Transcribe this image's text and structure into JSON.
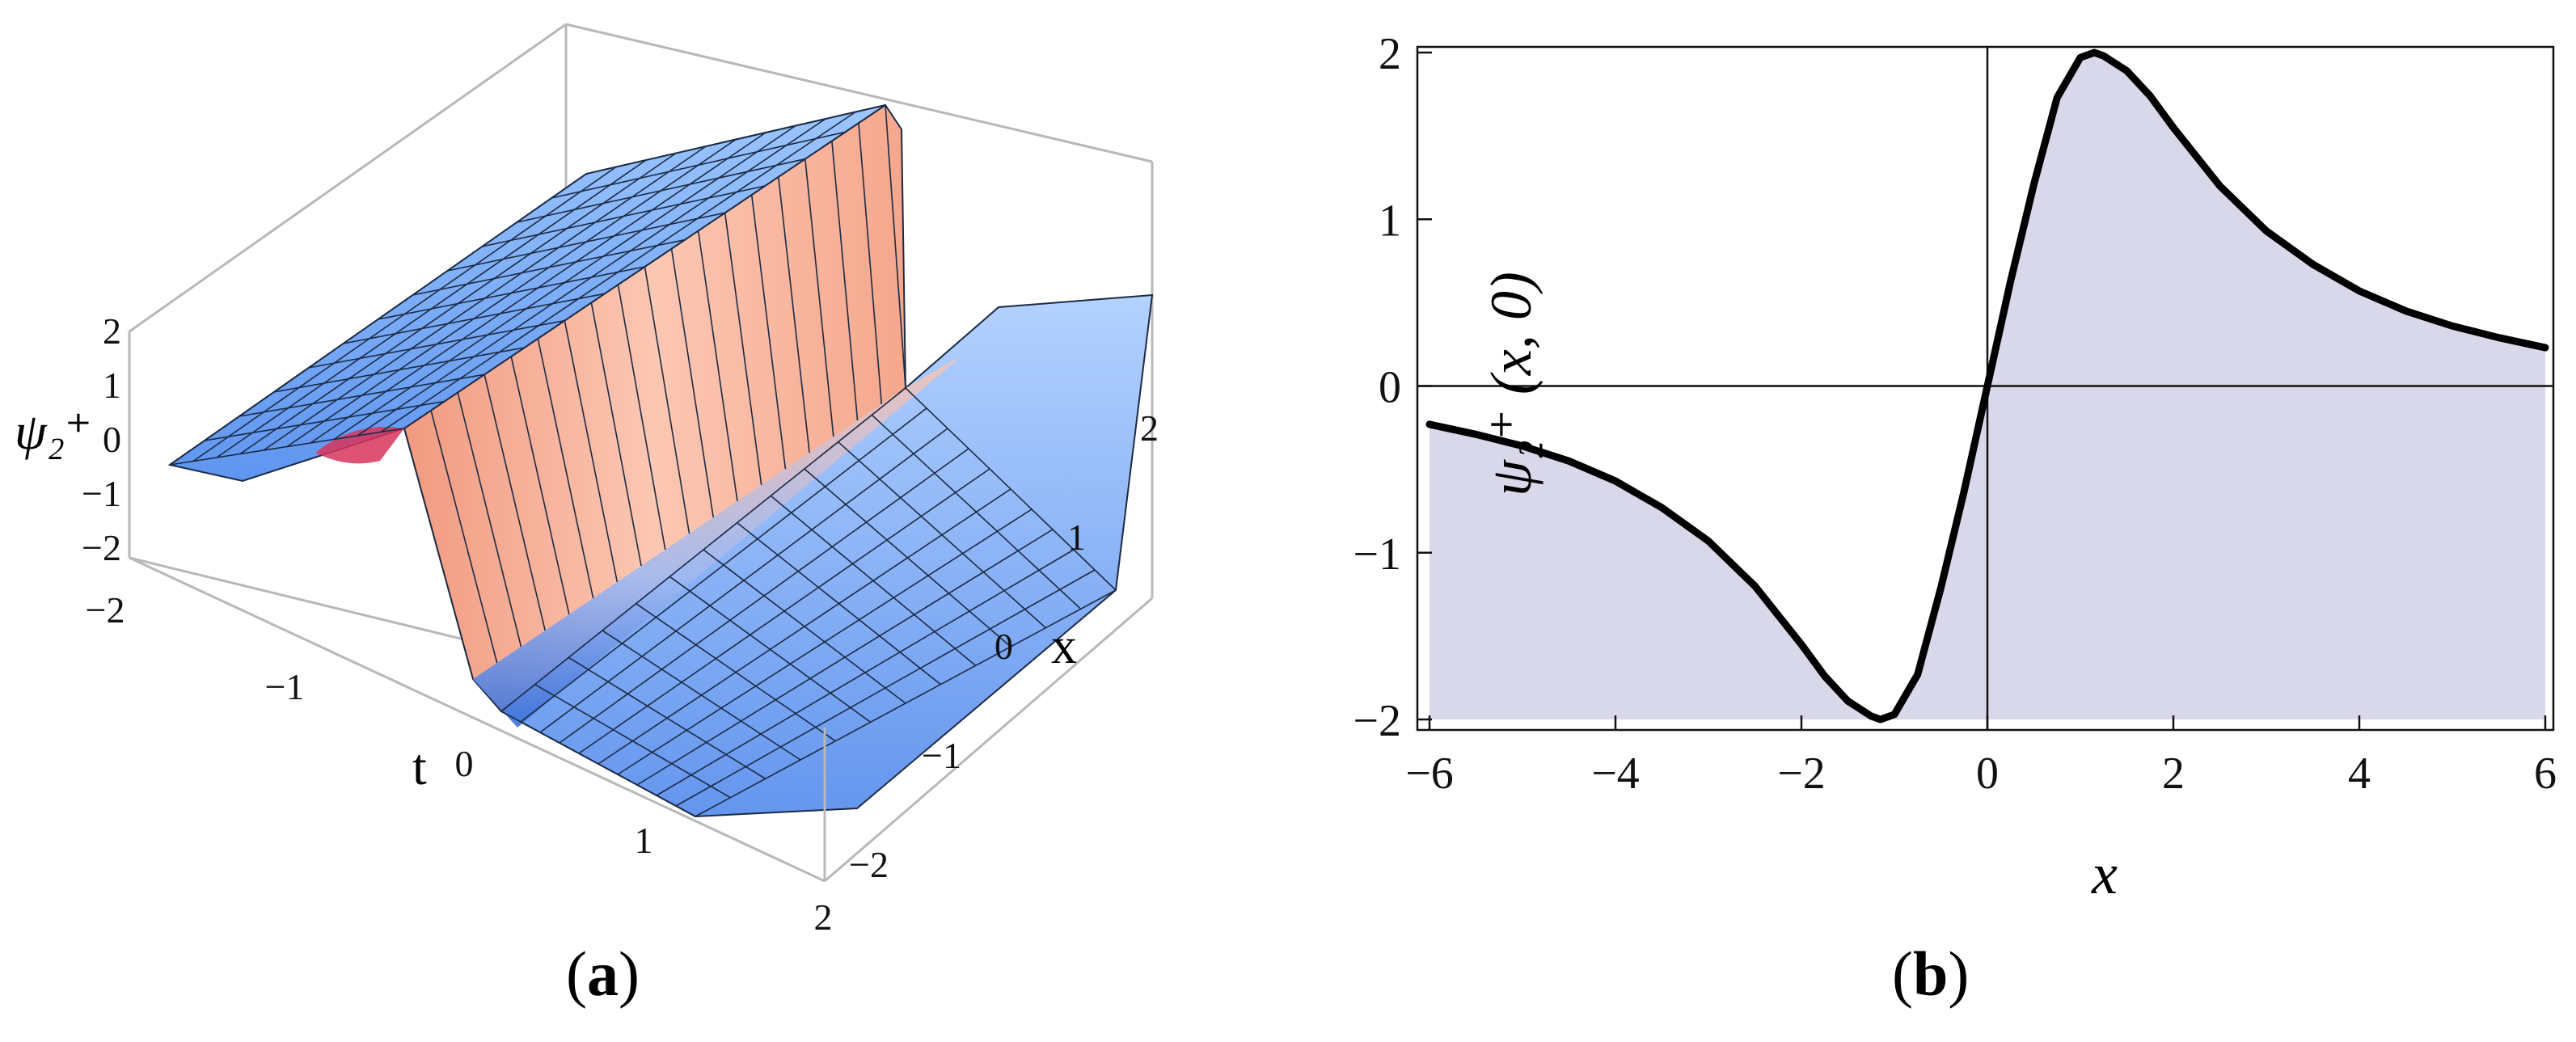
{
  "captions": {
    "a": "a",
    "b": "b"
  },
  "chart_data": [
    {
      "type": "surface3d",
      "panel": "a",
      "zlabel": "ψ₂⁺",
      "xlabel": "x",
      "tlabel": "t",
      "z_ticks": [
        2,
        1,
        0,
        -1,
        -2
      ],
      "x_ticks": [
        2,
        1,
        0,
        -1,
        -2
      ],
      "t_ticks": [
        -2,
        -1,
        0,
        1,
        2
      ],
      "x_range": [
        -2,
        2
      ],
      "t_range": [
        -2,
        2
      ],
      "z_range": [
        -2,
        2
      ],
      "colors": {
        "surface_low": "#6ea8f5",
        "surface_high": "#f9b5a0",
        "mesh": "#1b2a44",
        "box": "#b8b8b8"
      }
    },
    {
      "type": "area",
      "panel": "b",
      "xlabel": "x",
      "ylabel": "ψ₂⁺ (x, 0)",
      "xlim": [
        -6,
        6
      ],
      "ylim": [
        -2,
        2
      ],
      "x_ticks": [
        -6,
        -4,
        -2,
        0,
        2,
        4,
        6
      ],
      "y_ticks": [
        2,
        1,
        0,
        -1,
        -2
      ],
      "fill_baseline": -2,
      "colors": {
        "line": "#000000",
        "fill": "#d8d8ea"
      },
      "series": [
        {
          "x": [
            -6.0,
            -5.5,
            -5.0,
            -4.5,
            -4.0,
            -3.5,
            -3.0,
            -2.5,
            -2.0,
            -1.75,
            -1.5,
            -1.25,
            -1.15,
            -1.0,
            -0.75,
            -0.5,
            -0.25,
            0.0,
            0.25,
            0.5,
            0.75,
            1.0,
            1.15,
            1.25,
            1.5,
            1.75,
            2.0,
            2.5,
            3.0,
            3.5,
            4.0,
            4.5,
            5.0,
            5.5,
            6.0
          ],
          "y": [
            -0.23,
            -0.29,
            -0.36,
            -0.45,
            -0.57,
            -0.73,
            -0.93,
            -1.2,
            -1.55,
            -1.74,
            -1.89,
            -1.98,
            -2.0,
            -1.97,
            -1.73,
            -1.21,
            -0.63,
            0.0,
            0.63,
            1.21,
            1.73,
            1.97,
            2.0,
            1.98,
            1.89,
            1.74,
            1.55,
            1.2,
            0.93,
            0.73,
            0.57,
            0.45,
            0.36,
            0.29,
            0.23
          ]
        }
      ]
    }
  ]
}
